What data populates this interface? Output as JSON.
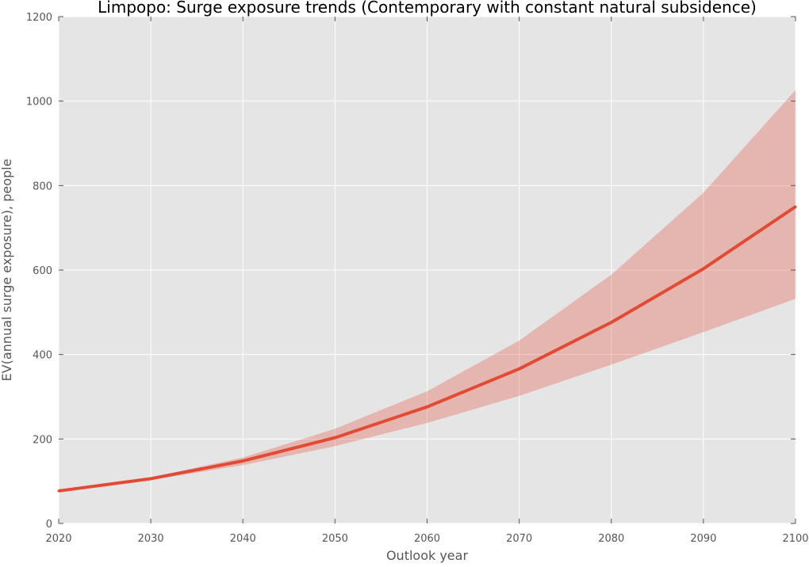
{
  "chart_data": {
    "type": "line",
    "title": "Limpopo: Surge exposure trends (Contemporary with constant natural subsidence)",
    "xlabel": "Outlook year",
    "ylabel": "EV(annual surge exposure), people",
    "xlim": [
      2020,
      2100
    ],
    "ylim": [
      0,
      1200
    ],
    "xticks": [
      2020,
      2030,
      2040,
      2050,
      2060,
      2070,
      2080,
      2090,
      2100
    ],
    "yticks": [
      0,
      200,
      400,
      600,
      800,
      1000,
      1200
    ],
    "grid": true,
    "x": [
      2020,
      2030,
      2040,
      2050,
      2060,
      2070,
      2080,
      2090,
      2100
    ],
    "series": [
      {
        "values": [
          77,
          106,
          148,
          203,
          276,
          366,
          476,
          603,
          750
        ],
        "lower": [
          77,
          103,
          138,
          183,
          238,
          302,
          376,
          453,
          532
        ],
        "upper": [
          77,
          109,
          156,
          224,
          313,
          433,
          589,
          783,
          1026
        ]
      }
    ],
    "colors": {
      "line": "#e24a33",
      "band": "#e8aba2",
      "plot_background": "#e5e5e5",
      "grid": "#ffffff"
    }
  }
}
